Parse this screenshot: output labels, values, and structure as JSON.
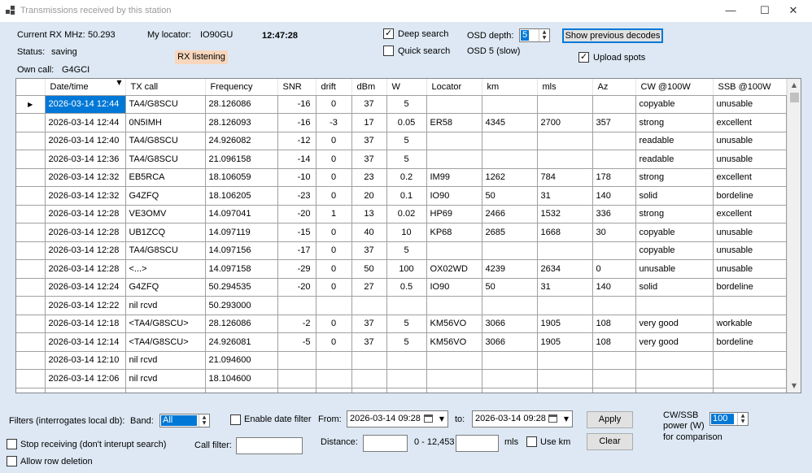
{
  "window": {
    "title": "Transmissions received by this station",
    "minimize": "—",
    "maximize": "☐",
    "close": "✕"
  },
  "header": {
    "rx_mhz_label": "Current RX MHz:",
    "rx_mhz_value": "50.293",
    "locator_label": "My locator:",
    "locator_value": "IO90GU",
    "clock": "12:47:28",
    "status_label": "Status:",
    "status_value": "saving",
    "rx_badge": "RX listening",
    "own_call_label": "Own call:",
    "own_call_value": "G4GCI",
    "deep_search_label": "Deep search",
    "deep_search_checked": true,
    "quick_search_label": "Quick search",
    "quick_search_checked": false,
    "osd_depth_label": "OSD depth:",
    "osd_depth_value": "5",
    "osd_status": "OSD 5 (slow)",
    "show_previous_label": "Show previous decodes",
    "upload_spots_label": "Upload spots",
    "upload_spots_checked": true
  },
  "grid": {
    "columns": [
      "Date/time",
      "TX call",
      "Frequency",
      "SNR",
      "drift",
      "dBm",
      "W",
      "Locator",
      "km",
      "mls",
      "Az",
      "CW @100W",
      "SSB @100W"
    ],
    "sort_indicator": "▼",
    "row_marker": "▶",
    "rows": [
      [
        "2026-03-14 12:44",
        "TA4/G8SCU",
        "28.126086",
        "-16",
        "0",
        "37",
        "5",
        "",
        "",
        "",
        "",
        "copyable",
        "unusable"
      ],
      [
        "2026-03-14 12:44",
        "0N5IMH",
        "28.126093",
        "-16",
        "-3",
        "17",
        "0.05",
        "ER58",
        "4345",
        "2700",
        "357",
        "strong",
        "excellent"
      ],
      [
        "2026-03-14 12:40",
        "TA4/G8SCU",
        "24.926082",
        "-12",
        "0",
        "37",
        "5",
        "",
        "",
        "",
        "",
        "readable",
        "unusable"
      ],
      [
        "2026-03-14 12:36",
        "TA4/G8SCU",
        "21.096158",
        "-14",
        "0",
        "37",
        "5",
        "",
        "",
        "",
        "",
        "readable",
        "unusable"
      ],
      [
        "2026-03-14 12:32",
        "EB5RCA",
        "18.106059",
        "-10",
        "0",
        "23",
        "0.2",
        "IM99",
        "1262",
        "784",
        "178",
        "strong",
        "excellent"
      ],
      [
        "2026-03-14 12:32",
        "G4ZFQ",
        "18.106205",
        "-23",
        "0",
        "20",
        "0.1",
        "IO90",
        "50",
        "31",
        "140",
        "solid",
        "bordeline"
      ],
      [
        "2026-03-14 12:28",
        "VE3OMV",
        "14.097041",
        "-20",
        "1",
        "13",
        "0.02",
        "HP69",
        "2466",
        "1532",
        "336",
        "strong",
        "excellent"
      ],
      [
        "2026-03-14 12:28",
        "UB1ZCQ",
        "14.097119",
        "-15",
        "0",
        "40",
        "10",
        "KP68",
        "2685",
        "1668",
        "30",
        "copyable",
        "unusable"
      ],
      [
        "2026-03-14 12:28",
        "TA4/G8SCU",
        "14.097156",
        "-17",
        "0",
        "37",
        "5",
        "",
        "",
        "",
        "",
        "copyable",
        "unusable"
      ],
      [
        "2026-03-14 12:28",
        "<...>",
        "14.097158",
        "-29",
        "0",
        "50",
        "100",
        "OX02WD",
        "4239",
        "2634",
        "0",
        "unusable",
        "unusable"
      ],
      [
        "2026-03-14 12:24",
        "G4ZFQ",
        "50.294535",
        "-20",
        "0",
        "27",
        "0.5",
        "IO90",
        "50",
        "31",
        "140",
        "solid",
        "bordeline"
      ],
      [
        "2026-03-14 12:22",
        "nil rcvd",
        "50.293000",
        "",
        "",
        "",
        "",
        "",
        "",
        "",
        "",
        "",
        ""
      ],
      [
        "2026-03-14 12:18",
        "<TA4/G8SCU>",
        "28.126086",
        "-2",
        "0",
        "37",
        "5",
        "KM56VO",
        "3066",
        "1905",
        "108",
        "very good",
        "workable"
      ],
      [
        "2026-03-14 12:14",
        "<TA4/G8SCU>",
        "24.926081",
        "-5",
        "0",
        "37",
        "5",
        "KM56VO",
        "3066",
        "1905",
        "108",
        "very good",
        "bordeline"
      ],
      [
        "2026-03-14 12:10",
        "nil rcvd",
        "21.094600",
        "",
        "",
        "",
        "",
        "",
        "",
        "",
        "",
        "",
        ""
      ],
      [
        "2026-03-14 12:06",
        "nil rcvd",
        "18.104600",
        "",
        "",
        "",
        "",
        "",
        "",
        "",
        "",
        "",
        ""
      ],
      [
        "",
        "",
        "",
        "",
        "",
        "",
        "",
        "",
        "",
        "",
        "",
        "",
        ""
      ]
    ],
    "scroll_up": "▲",
    "scroll_down": "▼"
  },
  "filters": {
    "label": "Filters (interrogates local db):",
    "band_label": "Band:",
    "band_value": "All",
    "enable_date_label": "Enable date filter",
    "enable_date_checked": false,
    "from_label": "From:",
    "from_value": "2026-03-14 09:28",
    "to_label": "to:",
    "to_value": "2026-03-14 09:28",
    "apply_label": "Apply",
    "clear_label": "Clear",
    "power_label_1": "CW/SSB",
    "power_label_2": "power (W)",
    "power_value": "100",
    "comparison_label": "for comparison",
    "stop_receiving_label": "Stop receiving (don't interupt search)",
    "stop_receiving_checked": false,
    "call_filter_label": "Call filter:",
    "call_filter_value": "",
    "distance_label": "Distance:",
    "distance_min": "",
    "distance_range": "0 - 12,453",
    "distance_max": "",
    "distance_unit": "mls",
    "use_km_label": "Use km",
    "use_km_checked": false,
    "allow_delete_label": "Allow row deletion",
    "allow_delete_checked": false
  }
}
